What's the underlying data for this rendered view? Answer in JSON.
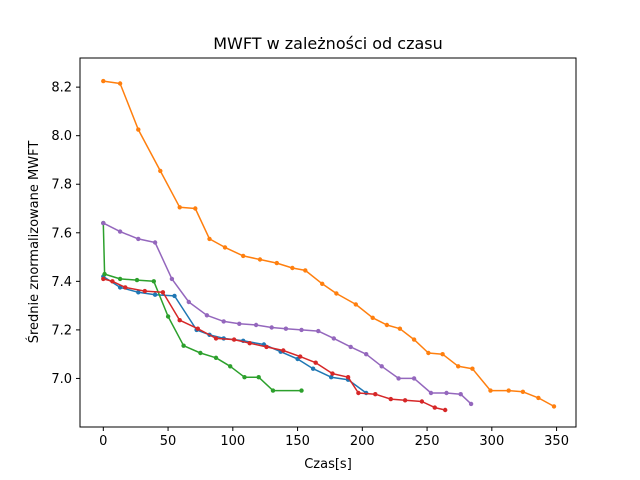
{
  "chart_data": {
    "type": "line",
    "title": "MWFT w zależności od czasu",
    "xlabel": "Czas[s]",
    "ylabel": "Średnie znormalizowane MWFT",
    "xlim": [
      -18,
      365
    ],
    "ylim": [
      6.8,
      8.32
    ],
    "xticks": [
      0,
      50,
      100,
      150,
      200,
      250,
      300,
      350
    ],
    "yticks": [
      7.0,
      7.2,
      7.4,
      7.6,
      7.8,
      8.0,
      8.2
    ],
    "ytick_labels": [
      "7.0",
      "7.2",
      "7.4",
      "7.6",
      "7.8",
      "8.0",
      "8.2"
    ],
    "grid": false,
    "series": [
      {
        "color": "#1f77b4",
        "points": [
          [
            0,
            7.42
          ],
          [
            13,
            7.375
          ],
          [
            27,
            7.355
          ],
          [
            40,
            7.345
          ],
          [
            55,
            7.34
          ],
          [
            72,
            7.2
          ],
          [
            82,
            7.18
          ],
          [
            93,
            7.165
          ],
          [
            108,
            7.155
          ],
          [
            124,
            7.14
          ],
          [
            137,
            7.11
          ],
          [
            150,
            7.08
          ],
          [
            162,
            7.04
          ],
          [
            176,
            7.005
          ],
          [
            189,
            6.995
          ],
          [
            203,
            6.94
          ]
        ]
      },
      {
        "color": "#ff7f0e",
        "points": [
          [
            0,
            8.225
          ],
          [
            13,
            8.215
          ],
          [
            27,
            8.025
          ],
          [
            44,
            7.855
          ],
          [
            59,
            7.705
          ],
          [
            71,
            7.7
          ],
          [
            82,
            7.575
          ],
          [
            94,
            7.54
          ],
          [
            108,
            7.505
          ],
          [
            121,
            7.49
          ],
          [
            134,
            7.475
          ],
          [
            146,
            7.455
          ],
          [
            156,
            7.445
          ],
          [
            169,
            7.39
          ],
          [
            180,
            7.35
          ],
          [
            195,
            7.305
          ],
          [
            208,
            7.25
          ],
          [
            219,
            7.22
          ],
          [
            229,
            7.205
          ],
          [
            240,
            7.16
          ],
          [
            251,
            7.105
          ],
          [
            262,
            7.1
          ],
          [
            274,
            7.05
          ],
          [
            285,
            7.04
          ],
          [
            299,
            6.95
          ],
          [
            313,
            6.95
          ],
          [
            324,
            6.945
          ],
          [
            336,
            6.92
          ],
          [
            348,
            6.885
          ]
        ]
      },
      {
        "color": "#2ca02c",
        "points": [
          [
            0,
            7.64
          ],
          [
            1,
            7.43
          ],
          [
            13,
            7.41
          ],
          [
            26,
            7.405
          ],
          [
            39,
            7.4
          ],
          [
            50,
            7.255
          ],
          [
            62,
            7.135
          ],
          [
            75,
            7.105
          ],
          [
            87,
            7.085
          ],
          [
            98,
            7.05
          ],
          [
            109,
            7.005
          ],
          [
            120,
            7.005
          ],
          [
            131,
            6.95
          ],
          [
            153,
            6.95
          ]
        ]
      },
      {
        "color": "#d62728",
        "points": [
          [
            0,
            7.41
          ],
          [
            7,
            7.4
          ],
          [
            17,
            7.375
          ],
          [
            32,
            7.36
          ],
          [
            46,
            7.355
          ],
          [
            59,
            7.24
          ],
          [
            73,
            7.205
          ],
          [
            87,
            7.165
          ],
          [
            101,
            7.16
          ],
          [
            113,
            7.145
          ],
          [
            126,
            7.13
          ],
          [
            139,
            7.115
          ],
          [
            152,
            7.09
          ],
          [
            164,
            7.065
          ],
          [
            177,
            7.02
          ],
          [
            189,
            7.005
          ],
          [
            197,
            6.94
          ],
          [
            210,
            6.935
          ],
          [
            222,
            6.915
          ],
          [
            233,
            6.91
          ],
          [
            246,
            6.905
          ],
          [
            256,
            6.88
          ],
          [
            264,
            6.87
          ]
        ]
      },
      {
        "color": "#9467bd",
        "points": [
          [
            0,
            7.64
          ],
          [
            13,
            7.605
          ],
          [
            27,
            7.575
          ],
          [
            40,
            7.56
          ],
          [
            53,
            7.41
          ],
          [
            66,
            7.315
          ],
          [
            80,
            7.26
          ],
          [
            93,
            7.235
          ],
          [
            105,
            7.225
          ],
          [
            118,
            7.22
          ],
          [
            130,
            7.21
          ],
          [
            141,
            7.205
          ],
          [
            153,
            7.2
          ],
          [
            166,
            7.195
          ],
          [
            178,
            7.165
          ],
          [
            191,
            7.13
          ],
          [
            203,
            7.1
          ],
          [
            215,
            7.05
          ],
          [
            228,
            7.0
          ],
          [
            240,
            7.0
          ],
          [
            253,
            6.94
          ],
          [
            265,
            6.94
          ],
          [
            276,
            6.935
          ],
          [
            284,
            6.895
          ]
        ]
      }
    ]
  }
}
